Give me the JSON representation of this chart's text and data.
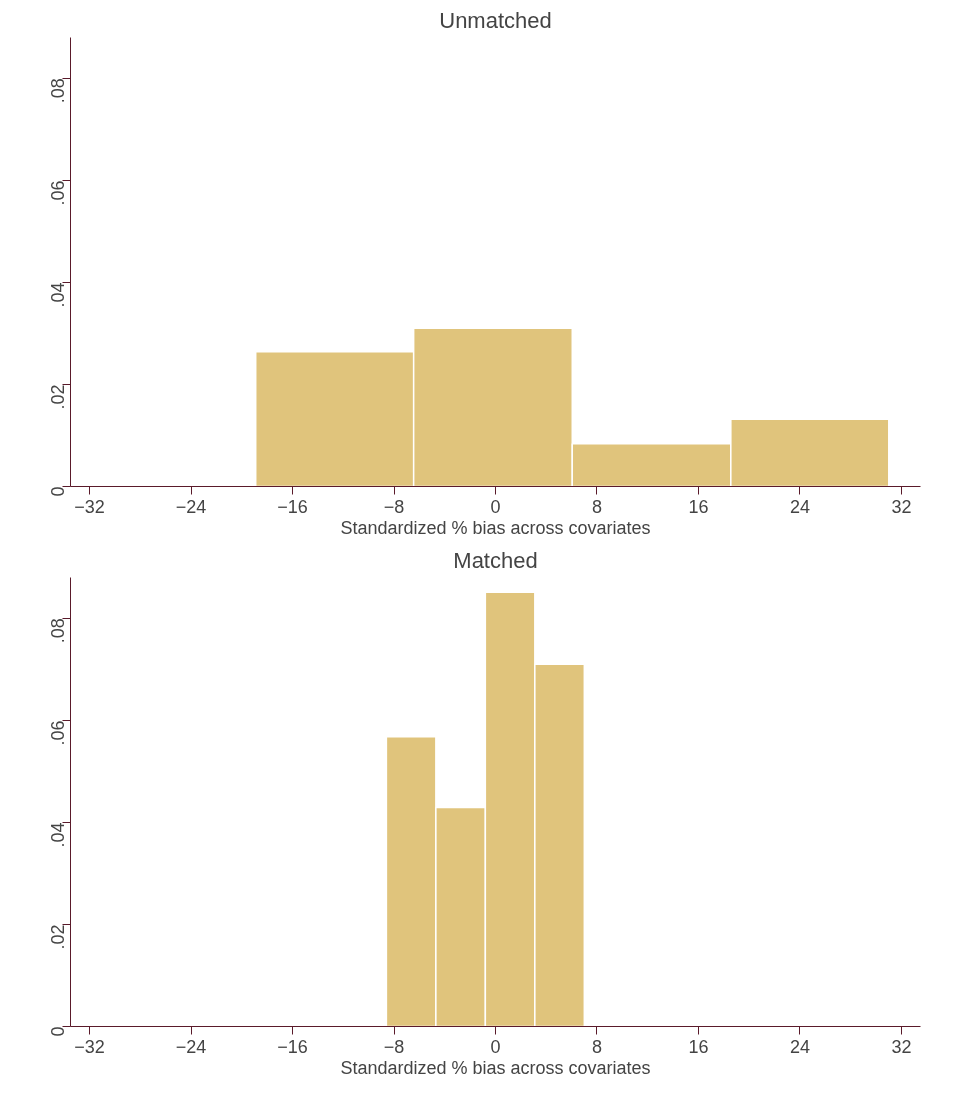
{
  "chart_data": [
    {
      "type": "histogram",
      "title": "Unmatched",
      "xlabel": "Standardized % bias across covariates",
      "bins": [
        -18.9,
        -6.45,
        6.05,
        18.55,
        31.0
      ],
      "values": [
        0.0264,
        0.031,
        0.0084,
        0.0132
      ],
      "color": "#e0c47c",
      "xlim": [
        -33.5,
        33.5
      ],
      "ylim": [
        0,
        0.088
      ],
      "xticks": [
        -32,
        -24,
        -16,
        -8,
        0,
        8,
        16,
        24,
        32
      ],
      "yticks": [
        {
          "value": 0,
          "label": "0"
        },
        {
          "value": 0.02,
          "label": ".02"
        },
        {
          "value": 0.04,
          "label": ".04"
        },
        {
          "value": 0.06,
          "label": ".06"
        },
        {
          "value": 0.08,
          "label": ".08"
        }
      ],
      "grid": false
    },
    {
      "type": "histogram",
      "title": "Matched",
      "xlabel": "Standardized % bias across covariates",
      "bins": [
        -8.6,
        -4.7,
        -0.8,
        3.1,
        7.0
      ],
      "values": [
        0.0568,
        0.0429,
        0.0851,
        0.071
      ],
      "color": "#e0c47c",
      "xlim": [
        -33.5,
        33.5
      ],
      "ylim": [
        0,
        0.088
      ],
      "xticks": [
        -32,
        -24,
        -16,
        -8,
        0,
        8,
        16,
        24,
        32
      ],
      "yticks": [
        {
          "value": 0,
          "label": "0"
        },
        {
          "value": 0.02,
          "label": ".02"
        },
        {
          "value": 0.04,
          "label": ".04"
        },
        {
          "value": 0.06,
          "label": ".06"
        },
        {
          "value": 0.08,
          "label": ".08"
        }
      ],
      "grid": false
    }
  ]
}
